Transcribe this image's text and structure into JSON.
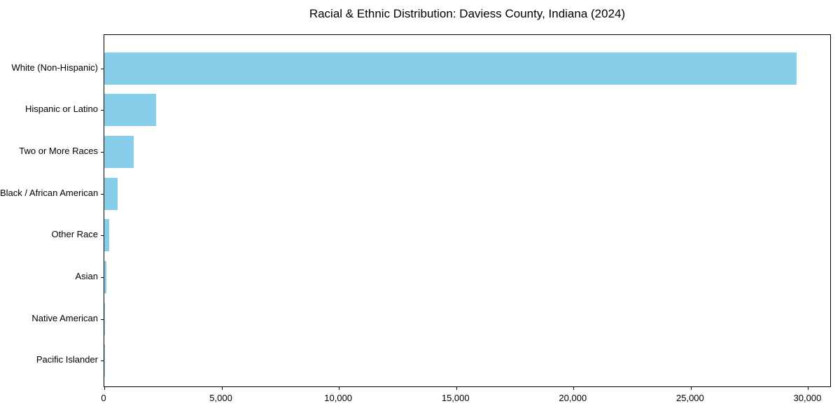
{
  "figure": {
    "background": "#ffffff",
    "text_color": "#000000",
    "spine_color": "#000000"
  },
  "chart_data": {
    "type": "bar",
    "orientation": "horizontal",
    "title": "Racial & Ethnic Distribution: Daviess County, Indiana (2024)",
    "categories": [
      "White (Non-Hispanic)",
      "Hispanic or Latino",
      "Two or More Races",
      "Black / African American",
      "Other Race",
      "Asian",
      "Native American",
      "Pacific Islander"
    ],
    "values": [
      29500,
      2200,
      1250,
      560,
      210,
      100,
      25,
      10
    ],
    "bar_color": "#87CEEB",
    "xlabel": "",
    "ylabel": "",
    "xlim": [
      0,
      31000
    ],
    "x_ticks": [
      0,
      5000,
      10000,
      15000,
      20000,
      25000,
      30000
    ],
    "x_tick_labels": [
      "0",
      "5,000",
      "10,000",
      "15,000",
      "20,000",
      "25,000",
      "30,000"
    ],
    "grid": false,
    "legend": "none",
    "value_labels_shown": false
  }
}
